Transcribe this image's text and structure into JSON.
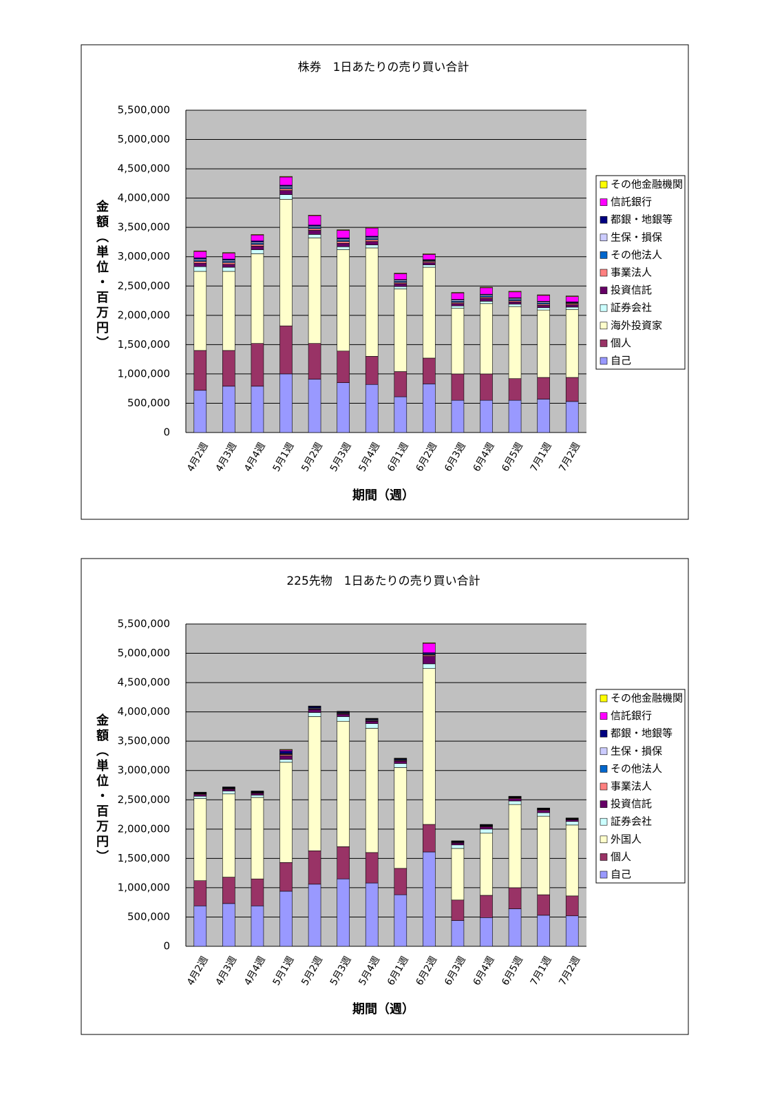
{
  "chart_data": [
    {
      "type": "bar",
      "stacked": true,
      "title": "株券　1日あたりの売り買い合計",
      "x_label": "期間（週）",
      "y_label": "金額（単位・百万円）",
      "categories": [
        "4月2週",
        "4月3週",
        "4月4週",
        "5月1週",
        "5月2週",
        "5月3週",
        "5月4週",
        "6月1週",
        "6月2週",
        "6月3週",
        "6月4週",
        "6月5週",
        "7月1週",
        "7月2週"
      ],
      "series": [
        {
          "name": "自己",
          "color": "#9999ff",
          "values": [
            720000,
            790000,
            790000,
            1000000,
            910000,
            850000,
            820000,
            610000,
            830000,
            550000,
            550000,
            550000,
            570000,
            530000
          ]
        },
        {
          "name": "個人",
          "color": "#993366",
          "values": [
            680000,
            610000,
            730000,
            820000,
            610000,
            540000,
            480000,
            430000,
            440000,
            450000,
            450000,
            370000,
            370000,
            410000
          ]
        },
        {
          "name": "海外投資家",
          "color": "#ffffcc",
          "values": [
            1350000,
            1350000,
            1530000,
            2160000,
            1800000,
            1730000,
            1850000,
            1410000,
            1550000,
            1120000,
            1200000,
            1230000,
            1150000,
            1160000
          ]
        },
        {
          "name": "証券会社",
          "color": "#ccffff",
          "values": [
            80000,
            70000,
            70000,
            80000,
            60000,
            50000,
            50000,
            40000,
            40000,
            40000,
            40000,
            40000,
            40000,
            40000
          ]
        },
        {
          "name": "投資信託",
          "color": "#660066",
          "values": [
            60000,
            50000,
            60000,
            70000,
            70000,
            60000,
            60000,
            50000,
            40000,
            40000,
            50000,
            40000,
            40000,
            40000
          ]
        },
        {
          "name": "事業法人",
          "color": "#ff8080",
          "values": [
            30000,
            30000,
            30000,
            30000,
            30000,
            30000,
            30000,
            20000,
            20000,
            20000,
            20000,
            20000,
            20000,
            20000
          ]
        },
        {
          "name": "その他法人",
          "color": "#0066cc",
          "values": [
            20000,
            20000,
            20000,
            20000,
            20000,
            20000,
            20000,
            20000,
            10000,
            20000,
            20000,
            20000,
            20000,
            10000
          ]
        },
        {
          "name": "生保・損保",
          "color": "#ccccff",
          "values": [
            20000,
            20000,
            20000,
            20000,
            20000,
            20000,
            20000,
            20000,
            10000,
            20000,
            20000,
            20000,
            20000,
            10000
          ]
        },
        {
          "name": "都銀・地銀等",
          "color": "#000080",
          "values": [
            20000,
            20000,
            20000,
            20000,
            20000,
            20000,
            20000,
            10000,
            10000,
            10000,
            10000,
            10000,
            10000,
            10000
          ]
        },
        {
          "name": "信託銀行",
          "color": "#ff00ff",
          "values": [
            110000,
            100000,
            100000,
            140000,
            160000,
            130000,
            140000,
            100000,
            90000,
            110000,
            110000,
            100000,
            100000,
            90000
          ]
        },
        {
          "name": "その他金融機関",
          "color": "#ffff00",
          "values": [
            10000,
            10000,
            10000,
            10000,
            10000,
            10000,
            10000,
            10000,
            10000,
            10000,
            10000,
            10000,
            10000,
            10000
          ]
        }
      ],
      "ylim": [
        0,
        5500000
      ],
      "yticks": [
        0,
        {
          "value": 500000,
          "label": "500,000"
        },
        {
          "value": 1000000,
          "label": "1,000,000"
        },
        {
          "value": 1500000,
          "label": "1,500,000"
        },
        {
          "value": 2000000,
          "label": "2,000,000"
        },
        {
          "value": 2500000,
          "label": "2,500,000"
        },
        {
          "value": 3000000,
          "label": "3,000,000"
        },
        {
          "value": 3500000,
          "label": "3,500,000"
        },
        {
          "value": 4000000,
          "label": "4,000,000"
        },
        {
          "value": 4500000,
          "label": "4,500,000"
        },
        {
          "value": 5000000,
          "label": "5,000,000"
        },
        {
          "value": 5500000,
          "label": "5,500,000"
        }
      ],
      "grid": true,
      "legend": "right"
    },
    {
      "type": "bar",
      "stacked": true,
      "title": "225先物　1日あたりの売り買い合計",
      "x_label": "期間（週）",
      "y_label": "金額（単位・百万円）",
      "categories": [
        "4月2週",
        "4月3週",
        "4月4週",
        "5月1週",
        "5月2週",
        "5月3週",
        "5月4週",
        "6月1週",
        "6月2週",
        "6月3週",
        "6月4週",
        "6月5週",
        "7月1週",
        "7月2週"
      ],
      "series": [
        {
          "name": "自己",
          "color": "#9999ff",
          "values": [
            690000,
            730000,
            690000,
            940000,
            1060000,
            1150000,
            1080000,
            880000,
            1610000,
            440000,
            490000,
            640000,
            530000,
            520000
          ]
        },
        {
          "name": "個人",
          "color": "#993366",
          "values": [
            430000,
            450000,
            460000,
            490000,
            570000,
            550000,
            520000,
            450000,
            470000,
            350000,
            380000,
            360000,
            350000,
            340000
          ]
        },
        {
          "name": "外国人",
          "color": "#ffffcc",
          "values": [
            1400000,
            1420000,
            1390000,
            1710000,
            2290000,
            2140000,
            2120000,
            1720000,
            2660000,
            880000,
            1060000,
            1420000,
            1340000,
            1210000
          ]
        },
        {
          "name": "証券会社",
          "color": "#ccffff",
          "values": [
            40000,
            50000,
            40000,
            50000,
            70000,
            80000,
            80000,
            70000,
            80000,
            60000,
            70000,
            60000,
            60000,
            60000
          ]
        },
        {
          "name": "投資信託",
          "color": "#660066",
          "values": [
            30000,
            30000,
            30000,
            60000,
            50000,
            40000,
            40000,
            40000,
            130000,
            30000,
            40000,
            40000,
            40000,
            30000
          ]
        },
        {
          "name": "事業法人",
          "color": "#ff8080",
          "values": [
            10000,
            10000,
            10000,
            20000,
            10000,
            10000,
            10000,
            10000,
            20000,
            10000,
            10000,
            10000,
            10000,
            5000
          ]
        },
        {
          "name": "その他法人",
          "color": "#0066cc",
          "values": [
            5000,
            5000,
            5000,
            10000,
            10000,
            10000,
            10000,
            10000,
            10000,
            5000,
            5000,
            5000,
            5000,
            5000
          ]
        },
        {
          "name": "生保・損保",
          "color": "#ccccff",
          "values": [
            5000,
            5000,
            5000,
            10000,
            10000,
            10000,
            10000,
            10000,
            10000,
            5000,
            5000,
            5000,
            5000,
            5000
          ]
        },
        {
          "name": "都銀・地銀等",
          "color": "#000080",
          "values": [
            10000,
            10000,
            10000,
            40000,
            20000,
            10000,
            10000,
            10000,
            20000,
            10000,
            10000,
            10000,
            10000,
            5000
          ]
        },
        {
          "name": "信託銀行",
          "color": "#ff00ff",
          "values": [
            5000,
            5000,
            5000,
            20000,
            5000,
            5000,
            5000,
            5000,
            160000,
            5000,
            5000,
            5000,
            5000,
            5000
          ]
        },
        {
          "name": "その他金融機関",
          "color": "#ffff00",
          "values": [
            5000,
            5000,
            5000,
            10000,
            5000,
            5000,
            5000,
            5000,
            10000,
            5000,
            5000,
            5000,
            5000,
            5000
          ]
        }
      ],
      "ylim": [
        0,
        5500000
      ],
      "yticks": [
        0,
        {
          "value": 500000,
          "label": "500,000"
        },
        {
          "value": 1000000,
          "label": "1,000,000"
        },
        {
          "value": 1500000,
          "label": "1,500,000"
        },
        {
          "value": 2000000,
          "label": "2,000,000"
        },
        {
          "value": 2500000,
          "label": "2,500,000"
        },
        {
          "value": 3000000,
          "label": "3,000,000"
        },
        {
          "value": 3500000,
          "label": "3,500,000"
        },
        {
          "value": 4000000,
          "label": "4,000,000"
        },
        {
          "value": 4500000,
          "label": "4,500,000"
        },
        {
          "value": 5000000,
          "label": "5,000,000"
        },
        {
          "value": 5500000,
          "label": "5,500,000"
        }
      ],
      "grid": true,
      "legend": "right"
    }
  ]
}
